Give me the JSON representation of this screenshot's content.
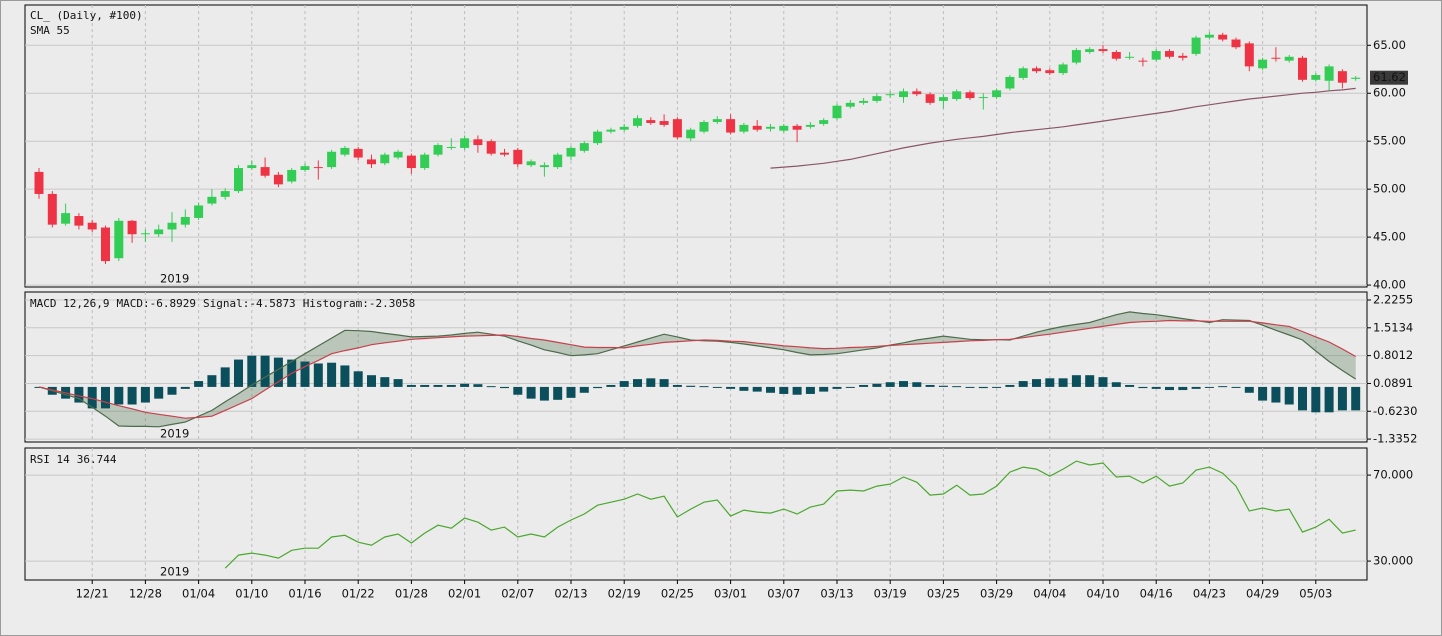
{
  "chart_data": [
    {
      "type": "candlestick",
      "title": "CL_ (Daily, #100)",
      "annotation": "2019",
      "up_color": "#33cc55",
      "down_color": "#ee3344",
      "grid": true,
      "ylim": [
        39.8,
        69.2
      ],
      "yticks": [
        {
          "value": 40,
          "label": "40.00"
        },
        {
          "value": 45,
          "label": "45.00"
        },
        {
          "value": 50,
          "label": "50.00"
        },
        {
          "value": 55,
          "label": "55.00"
        },
        {
          "value": 60,
          "label": "60.00"
        },
        {
          "value": 65,
          "label": "65.00"
        }
      ],
      "open": [
        51.8,
        49.5,
        46.4,
        47.2,
        46.5,
        46.0,
        42.8,
        46.7,
        45.3,
        45.3,
        45.8,
        46.3,
        47.0,
        48.5,
        49.2,
        49.8,
        52.2,
        52.3,
        51.5,
        50.8,
        52.0,
        52.3,
        52.3,
        53.6,
        54.2,
        53.1,
        52.7,
        53.3,
        53.5,
        52.2,
        53.6,
        54.3,
        54.3,
        55.2,
        55.0,
        53.8,
        54.1,
        52.5,
        52.3,
        52.3,
        53.4,
        54.0,
        54.8,
        56.0,
        56.2,
        56.6,
        57.2,
        57.1,
        57.3,
        55.3,
        56.0,
        57.0,
        57.3,
        56.0,
        56.6,
        56.3,
        56.1,
        56.6,
        56.5,
        56.8,
        57.4,
        58.6,
        59.0,
        59.2,
        59.8,
        59.6,
        60.2,
        59.9,
        59.2,
        59.4,
        60.1,
        59.6,
        59.6,
        60.5,
        61.6,
        62.6,
        62.4,
        62.1,
        63.2,
        64.3,
        64.6,
        64.3,
        63.8,
        63.4,
        63.5,
        64.4,
        63.9,
        64.1,
        65.8,
        66.1,
        65.6,
        65.2,
        62.6,
        63.7,
        63.4,
        63.7,
        61.4,
        61.3,
        62.3,
        61.5
      ],
      "high": [
        52.2,
        49.8,
        48.5,
        47.5,
        46.8,
        46.2,
        47.0,
        46.8,
        45.8,
        46.3,
        47.6,
        47.9,
        48.6,
        50.0,
        50.1,
        52.5,
        53.0,
        53.3,
        51.8,
        52.2,
        52.7,
        53.0,
        54.1,
        54.5,
        54.4,
        53.6,
        53.8,
        54.1,
        53.7,
        53.8,
        54.8,
        55.3,
        55.6,
        55.6,
        55.2,
        54.2,
        54.3,
        53.1,
        52.8,
        53.8,
        54.5,
        55.0,
        56.2,
        56.4,
        56.8,
        57.7,
        57.5,
        57.8,
        57.5,
        56.4,
        57.2,
        57.6,
        57.8,
        56.9,
        57.2,
        56.8,
        56.8,
        56.8,
        57.0,
        57.4,
        58.9,
        59.3,
        59.5,
        60.0,
        60.2,
        60.5,
        60.5,
        60.1,
        59.9,
        60.4,
        60.3,
        60.0,
        60.5,
        61.9,
        62.8,
        62.8,
        62.6,
        63.2,
        64.7,
        64.8,
        65.0,
        64.5,
        64.3,
        63.7,
        64.6,
        64.6,
        64.2,
        66.0,
        66.4,
        66.3,
        65.8,
        65.4,
        63.7,
        64.8,
        64.0,
        63.9,
        62.1,
        63.0,
        62.5,
        61.8
      ],
      "low": [
        49.0,
        46.0,
        46.2,
        45.8,
        45.5,
        42.2,
        42.5,
        44.4,
        44.5,
        45.0,
        44.5,
        46.0,
        46.8,
        48.3,
        48.9,
        49.6,
        52.0,
        51.2,
        50.2,
        50.6,
        51.8,
        51.0,
        52.1,
        53.4,
        53.0,
        52.2,
        52.5,
        53.1,
        51.6,
        52.0,
        53.4,
        54.1,
        54.1,
        53.8,
        53.5,
        53.4,
        52.3,
        52.3,
        51.3,
        52.1,
        53.0,
        53.8,
        54.6,
        55.8,
        56.0,
        56.4,
        56.7,
        56.5,
        55.2,
        55.0,
        55.8,
        56.8,
        55.7,
        55.8,
        56.0,
        56.0,
        55.9,
        54.9,
        56.3,
        56.6,
        57.2,
        58.4,
        58.8,
        59.0,
        59.5,
        59.0,
        59.7,
        58.8,
        58.4,
        59.2,
        59.3,
        58.3,
        59.4,
        60.3,
        61.4,
        62.1,
        61.9,
        61.9,
        63.0,
        64.1,
        64.2,
        63.4,
        63.5,
        62.8,
        63.3,
        63.6,
        63.4,
        63.9,
        65.6,
        65.4,
        64.6,
        62.3,
        62.4,
        63.3,
        63.2,
        61.2,
        61.2,
        60.3,
        60.5,
        61.3
      ],
      "close": [
        49.5,
        46.3,
        47.5,
        46.2,
        45.8,
        42.5,
        46.7,
        45.3,
        45.4,
        45.8,
        46.5,
        47.1,
        48.3,
        49.2,
        49.8,
        52.2,
        52.5,
        51.4,
        50.5,
        52.0,
        52.4,
        52.2,
        53.9,
        54.3,
        53.3,
        52.6,
        53.6,
        53.9,
        52.2,
        53.6,
        54.6,
        54.4,
        55.3,
        54.6,
        53.7,
        53.6,
        52.6,
        52.9,
        52.5,
        53.6,
        54.3,
        54.8,
        56.0,
        56.2,
        56.5,
        57.4,
        56.9,
        56.7,
        55.4,
        56.2,
        57.0,
        57.3,
        55.9,
        56.7,
        56.2,
        56.5,
        56.6,
        56.2,
        56.7,
        57.2,
        58.7,
        59.0,
        59.2,
        59.7,
        59.9,
        60.2,
        59.9,
        59.0,
        59.6,
        60.2,
        59.5,
        59.6,
        60.3,
        61.7,
        62.6,
        62.3,
        62.1,
        63.0,
        64.5,
        64.6,
        64.4,
        63.6,
        63.8,
        63.3,
        64.4,
        63.8,
        63.7,
        65.8,
        66.1,
        65.6,
        64.8,
        62.8,
        63.5,
        63.6,
        63.8,
        61.4,
        61.9,
        62.8,
        61.1,
        61.62
      ],
      "series": [
        {
          "name": "SMA 55",
          "color": "#8a5566",
          "values": [
            null,
            null,
            null,
            null,
            null,
            null,
            null,
            null,
            null,
            null,
            null,
            null,
            null,
            null,
            null,
            null,
            null,
            null,
            null,
            null,
            null,
            null,
            null,
            null,
            null,
            null,
            null,
            null,
            null,
            null,
            null,
            null,
            null,
            null,
            null,
            null,
            null,
            null,
            null,
            null,
            null,
            null,
            null,
            null,
            null,
            null,
            null,
            null,
            null,
            null,
            null,
            null,
            null,
            null,
            null,
            52.2,
            52.3,
            52.4,
            52.55,
            52.7,
            52.9,
            53.1,
            53.4,
            53.7,
            54.0,
            54.3,
            54.55,
            54.8,
            55.0,
            55.2,
            55.35,
            55.5,
            55.7,
            55.9,
            56.05,
            56.2,
            56.35,
            56.5,
            56.7,
            56.9,
            57.1,
            57.3,
            57.5,
            57.7,
            57.9,
            58.1,
            58.35,
            58.6,
            58.8,
            59.0,
            59.2,
            59.4,
            59.55,
            59.7,
            59.85,
            60.0,
            60.1,
            60.25,
            60.35,
            60.5
          ]
        }
      ]
    },
    {
      "type": "macd",
      "title": "MACD 12,26,9",
      "annotation": "2019",
      "fill": "rgba(80,120,80,0.32)",
      "grid": true,
      "ylim": [
        -1.41,
        2.43
      ],
      "yticks": [
        -1.3352,
        {
          "value": -0.623,
          "label": "-0.6230"
        },
        0.0891,
        0.8012,
        1.5134,
        2.2255
      ],
      "series": [
        {
          "name": "MACD:-6.8929",
          "kind": "line",
          "color": "#4d6b4d",
          "values": [
            0.0,
            -0.1,
            -0.2,
            -0.3,
            -0.52,
            -0.75,
            -1.0,
            -1.01,
            -1.01,
            -1.02,
            -0.96,
            -0.9,
            -0.75,
            -0.6,
            -0.38,
            -0.17,
            0.05,
            0.25,
            0.45,
            0.65,
            0.85,
            1.05,
            1.25,
            1.45,
            1.44,
            1.42,
            1.37,
            1.33,
            1.28,
            1.29,
            1.3,
            1.33,
            1.37,
            1.4,
            1.35,
            1.3,
            1.18,
            1.07,
            0.95,
            0.88,
            0.8,
            0.82,
            0.85,
            0.95,
            1.05,
            1.15,
            1.25,
            1.35,
            1.28,
            1.2,
            1.18,
            1.17,
            1.14,
            1.1,
            1.05,
            1.0,
            0.95,
            0.88,
            0.82,
            0.83,
            0.85,
            0.9,
            0.95,
            1.0,
            1.07,
            1.13,
            1.2,
            1.25,
            1.3,
            1.26,
            1.22,
            1.21,
            1.21,
            1.2,
            1.3,
            1.4,
            1.48,
            1.55,
            1.6,
            1.65,
            1.75,
            1.85,
            1.92,
            1.88,
            1.85,
            1.8,
            1.75,
            1.7,
            1.65,
            1.72,
            1.71,
            1.7,
            1.58,
            1.45,
            1.33,
            1.2,
            0.92,
            0.65,
            0.42,
            0.2
          ]
        },
        {
          "name": "Signal:-4.5873",
          "kind": "line",
          "color": "#c8404c",
          "values": [
            0,
            -0.08,
            -0.15,
            -0.23,
            -0.3,
            -0.39,
            -0.48,
            -0.56,
            -0.65,
            -0.7,
            -0.75,
            -0.8,
            -0.78,
            -0.75,
            -0.6,
            -0.45,
            -0.3,
            -0.08,
            0.13,
            0.35,
            0.52,
            0.68,
            0.85,
            0.93,
            1.0,
            1.08,
            1.13,
            1.17,
            1.22,
            1.24,
            1.26,
            1.28,
            1.3,
            1.31,
            1.32,
            1.33,
            1.29,
            1.24,
            1.2,
            1.14,
            1.08,
            1.02,
            1.01,
            1.01,
            1.0,
            1.05,
            1.09,
            1.14,
            1.16,
            1.18,
            1.2,
            1.19,
            1.17,
            1.16,
            1.12,
            1.09,
            1.05,
            1.03,
            1.0,
            0.98,
            0.99,
            1.01,
            1.02,
            1.04,
            1.06,
            1.08,
            1.1,
            1.12,
            1.14,
            1.16,
            1.18,
            1.19,
            1.21,
            1.22,
            1.26,
            1.31,
            1.35,
            1.4,
            1.45,
            1.5,
            1.55,
            1.6,
            1.65,
            1.67,
            1.68,
            1.7,
            1.69,
            1.69,
            1.68,
            1.68,
            1.68,
            1.68,
            1.64,
            1.59,
            1.55,
            1.42,
            1.28,
            1.15,
            0.97,
            0.78
          ]
        },
        {
          "name": "Histogram:-2.3058",
          "kind": "bar",
          "color": "#0b4f5c",
          "values": [
            0,
            -0.2,
            -0.3,
            -0.4,
            -0.55,
            -0.55,
            -0.45,
            -0.45,
            -0.4,
            -0.3,
            -0.2,
            -0.05,
            0.15,
            0.3,
            0.5,
            0.7,
            0.8,
            0.8,
            0.75,
            0.7,
            0.65,
            0.6,
            0.62,
            0.55,
            0.4,
            0.3,
            0.25,
            0.2,
            0.05,
            0.05,
            0.05,
            0.05,
            0.08,
            0.07,
            0.02,
            -0.03,
            -0.2,
            -0.3,
            -0.35,
            -0.33,
            -0.28,
            -0.15,
            -0.03,
            0.05,
            0.15,
            0.2,
            0.22,
            0.2,
            0.05,
            0.03,
            0.02,
            -0.02,
            -0.05,
            -0.1,
            -0.12,
            -0.15,
            -0.18,
            -0.2,
            -0.18,
            -0.12,
            -0.05,
            0,
            0.05,
            0.08,
            0.12,
            0.15,
            0.12,
            0.05,
            0.03,
            0.02,
            -0.02,
            -0.03,
            -0.02,
            0.05,
            0.15,
            0.2,
            0.22,
            0.22,
            0.3,
            0.3,
            0.25,
            0.12,
            0.05,
            -0.03,
            -0.05,
            -0.08,
            -0.08,
            -0.05,
            -0.02,
            0.02,
            -0.02,
            -0.15,
            -0.35,
            -0.4,
            -0.45,
            -0.6,
            -0.65,
            -0.65,
            -0.6,
            -0.6
          ]
        }
      ]
    },
    {
      "type": "line",
      "title": "RSI 14",
      "annotation": "2019",
      "grid": true,
      "ylim": [
        21.2,
        82.6
      ],
      "yticks": [
        {
          "value": 30,
          "label": "30.000"
        },
        {
          "value": 70,
          "label": "70.000"
        }
      ],
      "categories": [
        null,
        null,
        null,
        null,
        "12/21",
        null,
        null,
        null,
        "12/28",
        null,
        null,
        null,
        "01/04",
        null,
        null,
        null,
        "01/10",
        null,
        null,
        null,
        "01/16",
        null,
        null,
        null,
        "01/22",
        null,
        null,
        null,
        "01/28",
        null,
        null,
        null,
        "02/01",
        null,
        null,
        null,
        "02/07",
        null,
        null,
        null,
        "02/13",
        null,
        null,
        null,
        "02/19",
        null,
        null,
        null,
        "02/25",
        null,
        null,
        null,
        "03/01",
        null,
        null,
        null,
        "03/07",
        null,
        null,
        null,
        "03/13",
        null,
        null,
        null,
        "03/19",
        null,
        null,
        null,
        "03/25",
        null,
        null,
        null,
        "03/29",
        null,
        null,
        null,
        "04/04",
        null,
        null,
        null,
        "04/10",
        null,
        null,
        null,
        "04/16",
        null,
        null,
        null,
        "04/23",
        null,
        null,
        null,
        "04/29",
        null,
        null,
        null,
        "05/03",
        null,
        null,
        null
      ],
      "series": [
        {
          "name": "36.744",
          "color": "#4aa82e",
          "values": [
            null,
            null,
            null,
            null,
            null,
            null,
            null,
            null,
            null,
            null,
            null,
            null,
            null,
            null,
            26.7,
            32.8,
            33.7,
            32.8,
            31.4,
            35,
            36,
            36,
            41.2,
            42,
            38.8,
            37.4,
            41.2,
            42.6,
            38.4,
            43,
            46.7,
            45.3,
            50,
            48.1,
            44.4,
            45.8,
            41.2,
            42.6,
            41.2,
            45.8,
            49.1,
            51.9,
            56,
            57.4,
            58.8,
            61.2,
            58.8,
            60.2,
            50.5,
            54.2,
            57.4,
            58.4,
            50.9,
            53.7,
            52.8,
            52.3,
            54.2,
            51.9,
            55.1,
            56.5,
            62.6,
            63,
            62.6,
            64.9,
            65.8,
            69.1,
            66.7,
            60.7,
            61.2,
            65.3,
            60.7,
            61.2,
            64.9,
            71.4,
            73.7,
            72.8,
            69.5,
            72.8,
            76.5,
            74.7,
            75.6,
            69.1,
            69.5,
            66.3,
            69.5,
            64.9,
            66.3,
            72.3,
            73.7,
            70.9,
            64.9,
            53.3,
            54.7,
            53.3,
            54.2,
            43.5,
            45.8,
            49.5,
            43,
            44.4
          ]
        }
      ]
    }
  ]
}
